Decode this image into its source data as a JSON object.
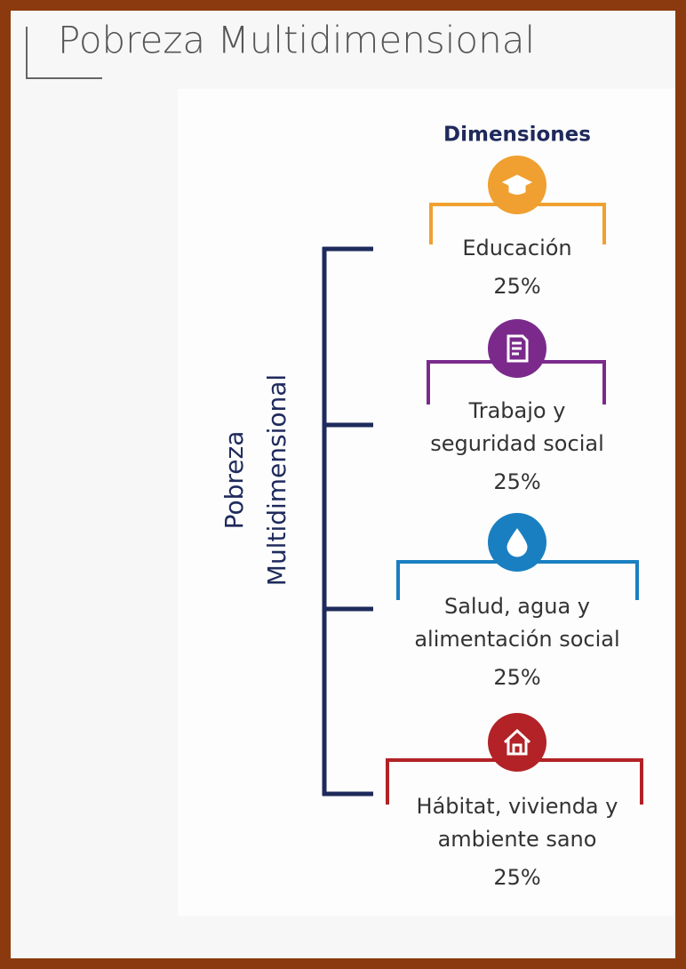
{
  "title": "Pobreza Multidimensional",
  "side_label": [
    "Pobreza",
    "Multidimensional"
  ],
  "header": "Dimensiones",
  "dimensions": [
    {
      "lines": [
        "Educación"
      ],
      "percent": "25%"
    },
    {
      "lines": [
        "Trabajo y",
        "seguridad social"
      ],
      "percent": "25%"
    },
    {
      "lines": [
        "Salud, agua y",
        "alimentación social"
      ],
      "percent": "25%"
    },
    {
      "lines": [
        "Hábitat, vivienda y",
        "ambiente sano"
      ],
      "percent": "25%"
    }
  ]
}
